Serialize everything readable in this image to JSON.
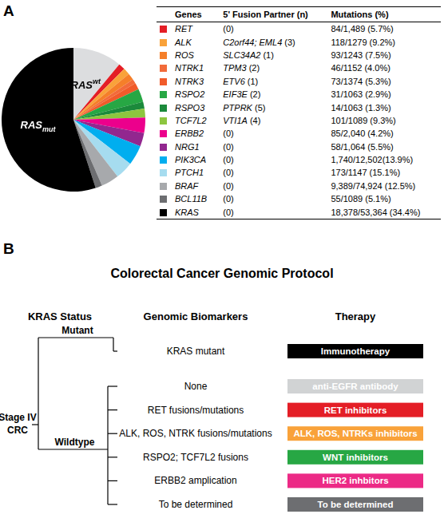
{
  "chart_data": {
    "type": "pie",
    "categories": [
      "RAS",
      null,
      null,
      null,
      null,
      null,
      null,
      null,
      null,
      null,
      null,
      null,
      null,
      null,
      null,
      "RAS"
    ],
    "label_scripts": [
      {
        "text": "wt",
        "position": "super"
      },
      null,
      null,
      null,
      null,
      null,
      null,
      null,
      null,
      null,
      null,
      null,
      null,
      null,
      null,
      {
        "text": "mut",
        "position": "sub"
      }
    ],
    "values": [
      11,
      1.5,
      1.5,
      1.5,
      1,
      1.5,
      3,
      1.5,
      2,
      3.5,
      3,
      4.5,
      4,
      4,
      1.5,
      55
    ],
    "colors": [
      "#dcdddf",
      "#e41e26",
      "#f9a23a",
      "#f57f29",
      "#f26b3a",
      "#f15b2a",
      "#27a744",
      "#1b8a3b",
      "#8dc63f",
      "#ec008c",
      "#92278f",
      "#00aeef",
      "#a6dcef",
      "#a7a9ac",
      "#6d6e71",
      "#000000"
    ],
    "legend": false
  },
  "panel_labels": [
    "A",
    "B"
  ],
  "table": {
    "columns": [
      "Genes",
      "5' Fusion Partner (n)",
      "Mutations (%)"
    ],
    "rows": [
      {
        "color": "#e41e26",
        "cells": [
          "RET",
          "(0)",
          "84/1,489 (5.7%)"
        ]
      },
      {
        "color": "#f9a23a",
        "cells": [
          "ALK",
          "C2orf44; EML4 (3)",
          "118/1279 (9.2%)"
        ]
      },
      {
        "color": "#f57f29",
        "cells": [
          "ROS",
          "SLC34A2 (1)",
          "93/1243 (7.5%)"
        ]
      },
      {
        "color": "#f26b3a",
        "cells": [
          "NTRK1",
          "TPM3 (2)",
          "46/1152 (4.0%)"
        ]
      },
      {
        "color": "#f15b2a",
        "cells": [
          "NTRK3",
          "ETV6 (1)",
          "73/1374 (5.3%)"
        ]
      },
      {
        "color": "#27a744",
        "cells": [
          "RSPO2",
          "EIF3E (2)",
          "31/1063 (2.9%)"
        ]
      },
      {
        "color": "#1b8a3b",
        "cells": [
          "RSPO3",
          "PTPRK (5)",
          "14/1063 (1.3%)"
        ]
      },
      {
        "color": "#8dc63f",
        "cells": [
          "TCF7L2",
          "VTI1A (4)",
          "101/1089 (9.3%)"
        ]
      },
      {
        "color": "#ec008c",
        "cells": [
          "ERBB2",
          "(0)",
          "85/2,040 (4.2%)"
        ]
      },
      {
        "color": "#92278f",
        "cells": [
          "NRG1",
          "(0)",
          "58/1,064 (5.5%)"
        ]
      },
      {
        "color": "#00aeef",
        "cells": [
          "PIK3CA",
          "(0)",
          "1,740/12,502(13.9%)"
        ]
      },
      {
        "color": "#a6dcef",
        "cells": [
          "PTCH1",
          "(0)",
          "173/1147 (15.1%)"
        ]
      },
      {
        "color": "#a7a9ac",
        "cells": [
          "BRAF",
          "(0)",
          "9,389/74,924 (12.5%)"
        ]
      },
      {
        "color": "#6d6e71",
        "cells": [
          "BCL11B",
          "(0)",
          "55/1089 (5.1%)"
        ]
      },
      {
        "color": "#000000",
        "cells": [
          "KRAS",
          "(0)",
          "18,378/53,364 (34.4%)"
        ]
      }
    ]
  },
  "protocol": {
    "title": "Colorectal Cancer Genomic Protocol",
    "columns": [
      "KRAS Status",
      "Genomic Biomarkers",
      "Therapy"
    ],
    "root": [
      "Stage IV",
      "CRC"
    ],
    "branches": [
      {
        "label": "Mutant",
        "rows": [
          {
            "biomarker": "KRAS mutant",
            "therapy": "Immunotherapy",
            "color": "#000000"
          }
        ]
      },
      {
        "label": "Wildtype",
        "rows": [
          {
            "biomarker": "None",
            "therapy": "anti-EGFR antibody",
            "color": "#d1d3d4"
          },
          {
            "biomarker": "RET fusions/mutations",
            "therapy": "RET inhibitors",
            "color": "#e41e26"
          },
          {
            "biomarker": "ALK, ROS, NTRK fusions/mutations",
            "therapy": "ALK, ROS, NTRKs inhibitors",
            "color": "#f9a23a"
          },
          {
            "biomarker": "RSPO2; TCF7L2 fusions",
            "therapy": "WNT inhibitors",
            "color": "#27a744"
          },
          {
            "biomarker": "ERBB2 amplication",
            "therapy": "HER2 inhbitors",
            "color": "#ec2a86"
          },
          {
            "biomarker": "To be determined",
            "therapy": "To be determined",
            "color": "#6d6e71"
          }
        ]
      }
    ]
  }
}
